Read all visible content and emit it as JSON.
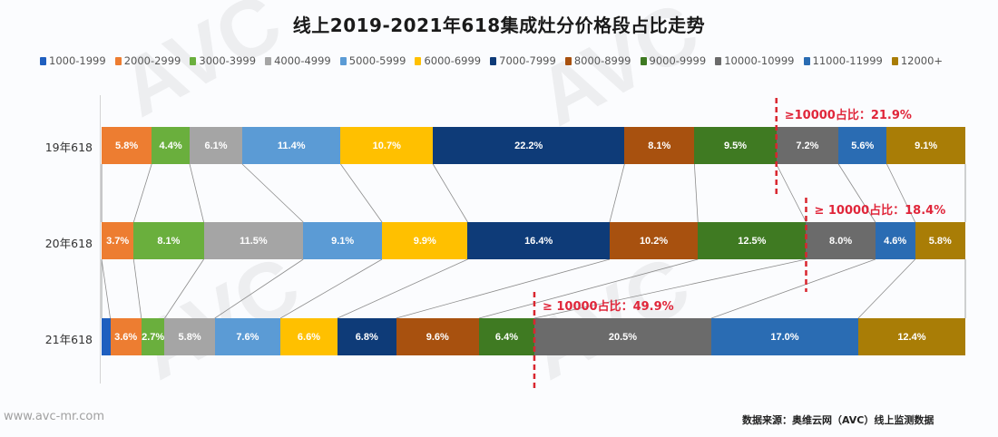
{
  "title": "线上2019-2021年618集成灶分价格段占比走势",
  "legend": [
    {
      "label": "1000-1999",
      "color": "#1f5fbf"
    },
    {
      "label": "2000-2999",
      "color": "#ed7d31"
    },
    {
      "label": "3000-3999",
      "color": "#6aaf3d"
    },
    {
      "label": "4000-4999",
      "color": "#a5a5a5"
    },
    {
      "label": "5000-5999",
      "color": "#5b9bd5"
    },
    {
      "label": "6000-6999",
      "color": "#ffc000"
    },
    {
      "label": "7000-7999",
      "color": "#0e3b78"
    },
    {
      "label": "8000-8999",
      "color": "#a8510f"
    },
    {
      "label": "9000-9999",
      "color": "#3f7a22"
    },
    {
      "label": "10000-10999",
      "color": "#6b6b6b"
    },
    {
      "label": "11000-11999",
      "color": "#2a6cb3"
    },
    {
      "label": "12000+",
      "color": "#a97d06"
    }
  ],
  "rows": [
    {
      "label": "19年618",
      "annotation": "≥10000占比：21.9%"
    },
    {
      "label": "20年618",
      "annotation": "≥ 10000占比：18.4%"
    },
    {
      "label": "21年618",
      "annotation": "≥ 10000占比：49.9%"
    }
  ],
  "footer": {
    "website": "www.avc-mr.com",
    "source": "数据来源：奥维云网（AVC）线上监测数据"
  },
  "watermark": "AVC",
  "chart_data": {
    "type": "bar",
    "subtype": "stacked-horizontal-100",
    "title": "线上2019-2021年618集成灶分价格段占比走势",
    "xlabel": "",
    "ylabel": "",
    "categories": [
      "19年618",
      "20年618",
      "21年618"
    ],
    "legend_position": "top",
    "grid": false,
    "series": [
      {
        "name": "1000-1999",
        "values": [
          0,
          0,
          1.0
        ],
        "labels": [
          "",
          "",
          ""
        ]
      },
      {
        "name": "2000-2999",
        "values": [
          5.8,
          3.7,
          3.6
        ],
        "labels": [
          "5.8%",
          "3.7%",
          "3.6%"
        ]
      },
      {
        "name": "3000-3999",
        "values": [
          4.4,
          8.1,
          2.7
        ],
        "labels": [
          "4.4%",
          "8.1%",
          "2.7%"
        ]
      },
      {
        "name": "4000-4999",
        "values": [
          6.1,
          11.5,
          5.8
        ],
        "labels": [
          "6.1%",
          "11.5%",
          "5.8%"
        ]
      },
      {
        "name": "5000-5999",
        "values": [
          11.4,
          9.1,
          7.6
        ],
        "labels": [
          "11.4%",
          "9.1%",
          "7.6%"
        ]
      },
      {
        "name": "6000-6999",
        "values": [
          10.7,
          9.9,
          6.6
        ],
        "labels": [
          "10.7%",
          "9.9%",
          "6.6%"
        ]
      },
      {
        "name": "7000-7999",
        "values": [
          22.2,
          16.4,
          6.8
        ],
        "labels": [
          "22.2%",
          "16.4%",
          "6.8%"
        ]
      },
      {
        "name": "8000-8999",
        "values": [
          8.1,
          10.2,
          9.6
        ],
        "labels": [
          "8.1%",
          "10.2%",
          "9.6%"
        ]
      },
      {
        "name": "9000-9999",
        "values": [
          9.5,
          12.5,
          6.4
        ],
        "labels": [
          "9.5%",
          "12.5%",
          "6.4%"
        ]
      },
      {
        "name": "10000-10999",
        "values": [
          7.2,
          8.0,
          20.5
        ],
        "labels": [
          "7.2%",
          "8.0%",
          "20.5%"
        ]
      },
      {
        "name": "11000-11999",
        "values": [
          5.6,
          4.6,
          17.0
        ],
        "labels": [
          "5.6%",
          "4.6%",
          "17.0%"
        ]
      },
      {
        "name": "12000+",
        "values": [
          9.1,
          5.8,
          12.4
        ],
        "labels": [
          "9.1%",
          "5.8%",
          "12.4%"
        ]
      }
    ],
    "annotations": [
      {
        "row": "19年618",
        "text": "≥10000占比：21.9%",
        "threshold": "10000"
      },
      {
        "row": "20年618",
        "text": "≥ 10000占比：18.4%",
        "threshold": "10000"
      },
      {
        "row": "21年618",
        "text": "≥ 10000占比：49.9%",
        "threshold": "10000"
      }
    ]
  }
}
